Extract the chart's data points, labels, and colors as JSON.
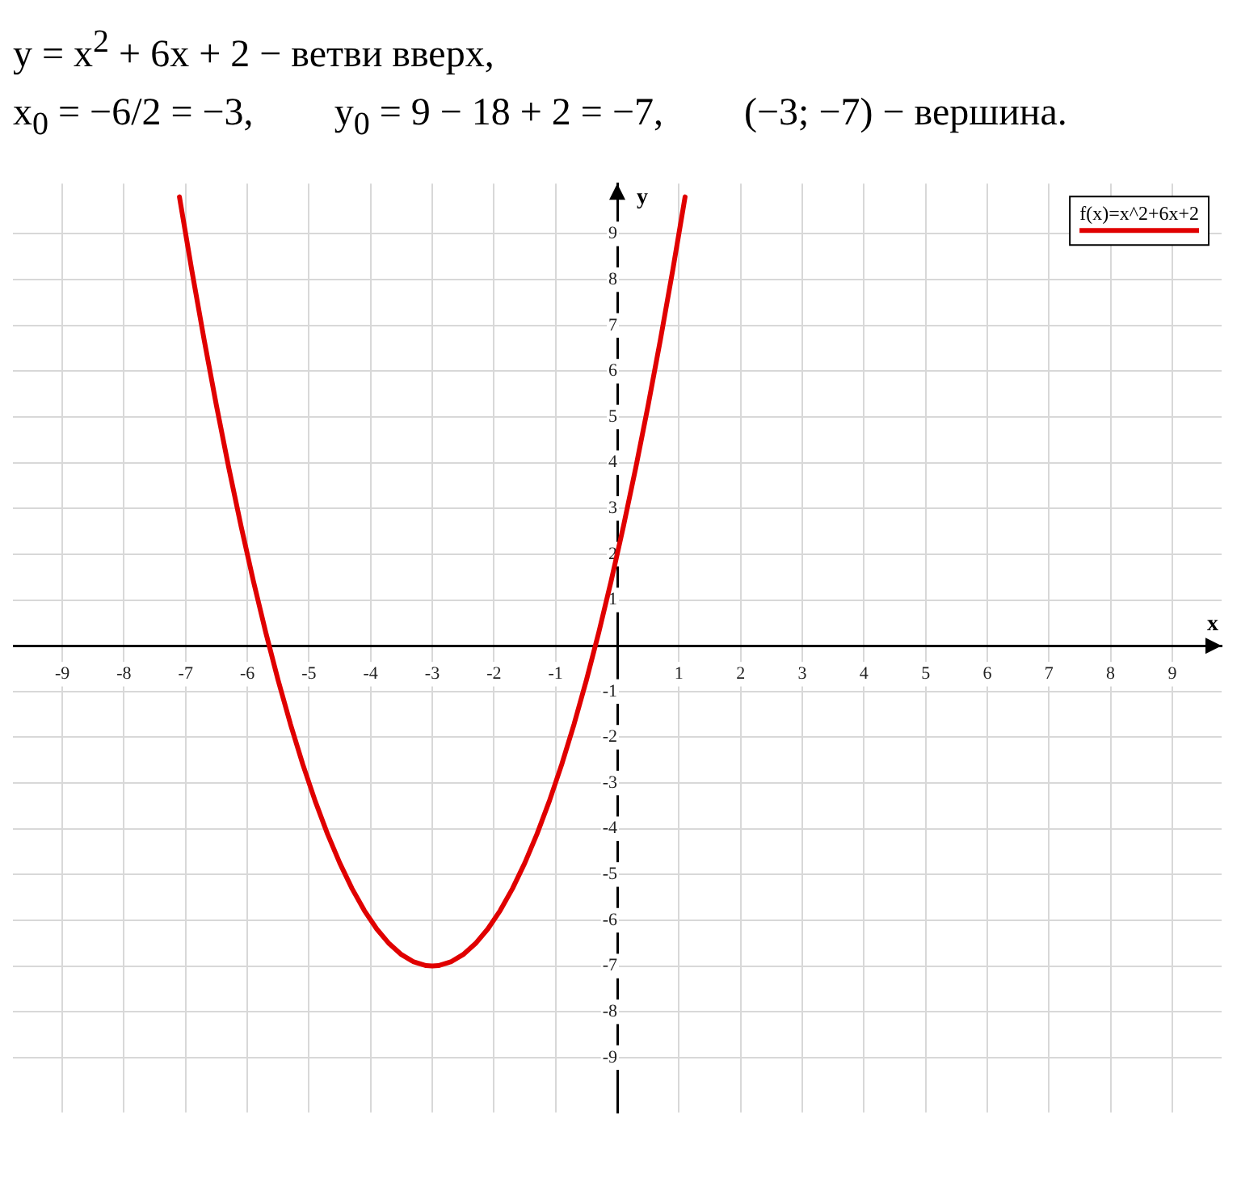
{
  "chart_data": {
    "type": "line",
    "title": "y = x$^{2}$ + 6x + 2 − ветви вверх,",
    "annotations": [
      "x$_{0}$ = −6/2 = −3,",
      "y$_{0}$ = 9 − 18 + 2 = −7,",
      "(−3; −7) − вершина."
    ],
    "xlabel": "x",
    "ylabel": "y",
    "series": [
      {
        "name": "f(x)=x^2+6x+2",
        "color": "#e00000",
        "x": [
          -7.1,
          -6.9,
          -6.7,
          -6.5,
          -6.3,
          -6.1,
          -5.9,
          -5.7,
          -5.5,
          -5.3,
          -5.1,
          -4.9,
          -4.7,
          -4.5,
          -4.3,
          -4.1,
          -3.9,
          -3.7,
          -3.5,
          -3.3,
          -3.1,
          -3,
          -2.9,
          -2.7,
          -2.5,
          -2.3,
          -2.1,
          -1.9,
          -1.7,
          -1.5,
          -1.3,
          -1.1,
          -0.9,
          -0.7,
          -0.5,
          -0.3,
          -0.1,
          0.1,
          0.3,
          0.5,
          0.7,
          0.9,
          1.1
        ],
        "values": [
          9.81,
          8.21,
          6.69,
          5.25,
          3.89,
          2.61,
          1.41,
          0.29,
          -0.75,
          -1.71,
          -2.59,
          -3.39,
          -4.11,
          -4.75,
          -5.31,
          -5.79,
          -6.19,
          -6.51,
          -6.75,
          -6.91,
          -6.99,
          -7,
          -6.99,
          -6.91,
          -6.75,
          -6.51,
          -6.19,
          -5.79,
          -5.31,
          -4.75,
          -4.11,
          -3.39,
          -2.59,
          -1.71,
          -0.75,
          0.29,
          1.41,
          2.61,
          3.89,
          5.25,
          6.69,
          8.21,
          9.81
        ]
      }
    ],
    "xlim": [
      -9.8,
      9.8
    ],
    "ylim": [
      -10.2,
      10.1
    ],
    "xticks": [
      -9,
      -8,
      -7,
      -6,
      -5,
      -4,
      -3,
      -2,
      -1,
      1,
      2,
      3,
      4,
      5,
      6,
      7,
      8,
      9
    ],
    "yticks": [
      -9,
      -8,
      -7,
      -6,
      -5,
      -4,
      -3,
      -2,
      -1,
      1,
      2,
      3,
      4,
      5,
      6,
      7,
      8,
      9
    ],
    "grid": true,
    "legend": "top right",
    "marker": "none",
    "line_style": "solid"
  }
}
